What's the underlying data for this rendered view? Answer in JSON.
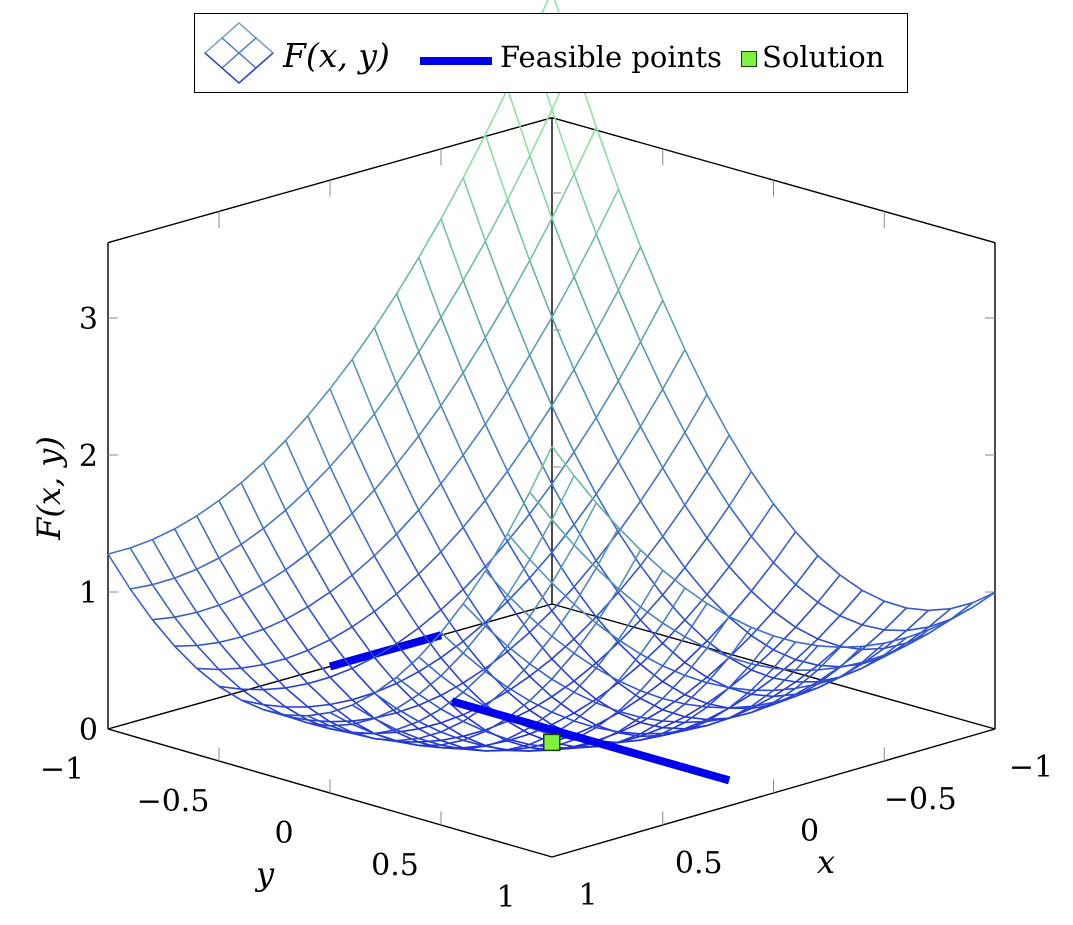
{
  "chart_data": {
    "type": "surface3d",
    "function": "F(x,y) = (x + y)^2 + 0.5*(x - y)^2 + ... (upward-opening paraboloid, min near y≈0.1, x≈0.1)",
    "surface_name": "F(x,y)",
    "legend": {
      "surface": "F(x, y)",
      "feasible": "Feasible points",
      "solution": "Solution"
    },
    "x_axis": {
      "label": "x",
      "range": [
        -1,
        1
      ],
      "ticks": [
        "−1",
        "−0.5",
        "0",
        "0.5",
        "1"
      ]
    },
    "y_axis": {
      "label": "y",
      "range": [
        -1,
        1
      ],
      "ticks": [
        "−1",
        "−0.5",
        "0",
        "0.5",
        "1"
      ]
    },
    "z_axis": {
      "label": "F(x, y)",
      "range": [
        0,
        3.5
      ],
      "ticks": [
        "0",
        "1",
        "2",
        "3"
      ]
    },
    "grid_samples": 20,
    "surface_colormap": [
      "#1f2fd6",
      "#3f6fc8",
      "#5fa6b0",
      "#8ee59a"
    ],
    "feasible_color": "#0000ee",
    "solution_color": "#7ff23e",
    "feasible_segments": [
      {
        "x": [
          0.0,
          0.0
        ],
        "y": [
          -0.45,
          0.8
        ],
        "z": [
          0,
          0
        ],
        "name": "front-line"
      },
      {
        "x": [
          -0.5,
          0.0
        ],
        "y": [
          -1.0,
          -1.0
        ],
        "z": [
          0,
          0
        ],
        "name": "back-line"
      }
    ],
    "solution_point": {
      "x": 0.1,
      "y": 0.1,
      "z": 0
    }
  }
}
